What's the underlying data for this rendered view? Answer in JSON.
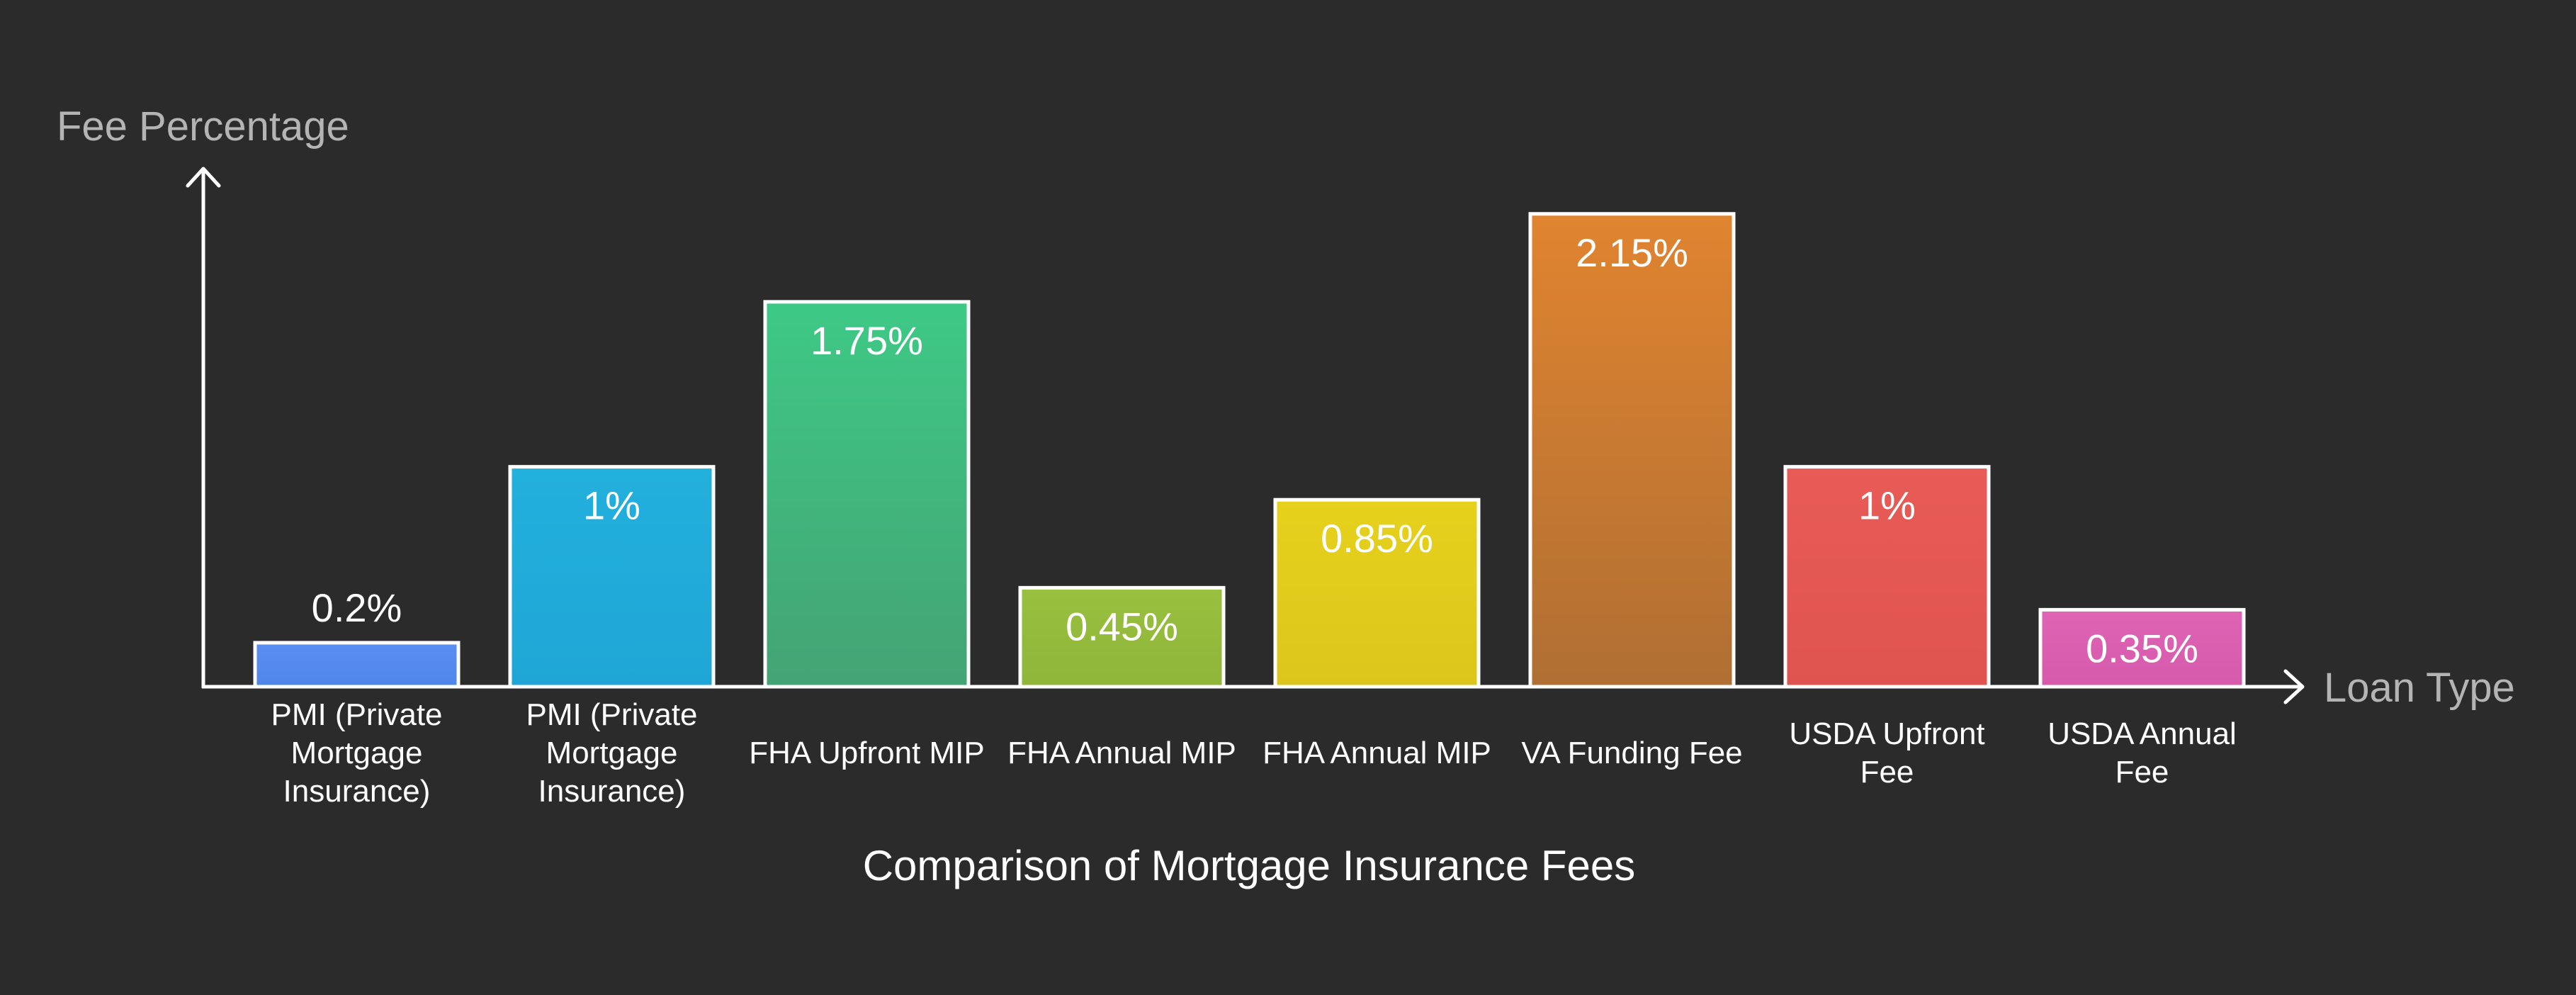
{
  "chart_data": {
    "type": "bar",
    "title": "Comparison of Mortgage Insurance Fees",
    "xlabel": "Loan Type",
    "ylabel": "Fee Percentage",
    "ylim": [
      0,
      2.32
    ],
    "grid": false,
    "categories": [
      "PMI (Private Mortgage Insurance)",
      "PMI (Private Mortgage Insurance)",
      "FHA Upfront MIP",
      "FHA Annual MIP",
      "FHA Annual MIP",
      "VA Funding Fee",
      "USDA Upfront Fee",
      "USDA Annual Fee"
    ],
    "category_label_lines": [
      [
        "PMI (Private",
        "Mortgage",
        "Insurance)"
      ],
      [
        "PMI (Private",
        "Mortgage",
        "Insurance)"
      ],
      [
        "FHA Upfront MIP"
      ],
      [
        "FHA Annual MIP"
      ],
      [
        "FHA Annual MIP"
      ],
      [
        "VA Funding Fee"
      ],
      [
        "USDA Upfront",
        "Fee"
      ],
      [
        "USDA Annual",
        "Fee"
      ]
    ],
    "values": [
      0.2,
      1,
      1.75,
      0.45,
      0.85,
      2.15,
      1,
      0.35
    ],
    "value_labels": [
      "0.2%",
      "1%",
      "1.75%",
      "0.45%",
      "0.85%",
      "2.15%",
      "1%",
      "0.35%"
    ],
    "colors": [
      [
        "#5b8ef0",
        "#4f86e8"
      ],
      [
        "#22b0dd",
        "#1fa6d6"
      ],
      [
        "#3ec986",
        "#44a374"
      ],
      [
        "#99c03e",
        "#8fb53a"
      ],
      [
        "#e6d11c",
        "#dcc61c"
      ],
      [
        "#e08430",
        "#b06f33"
      ],
      [
        "#e85b57",
        "#e05450"
      ],
      [
        "#e064b4",
        "#d65aac"
      ]
    ]
  }
}
